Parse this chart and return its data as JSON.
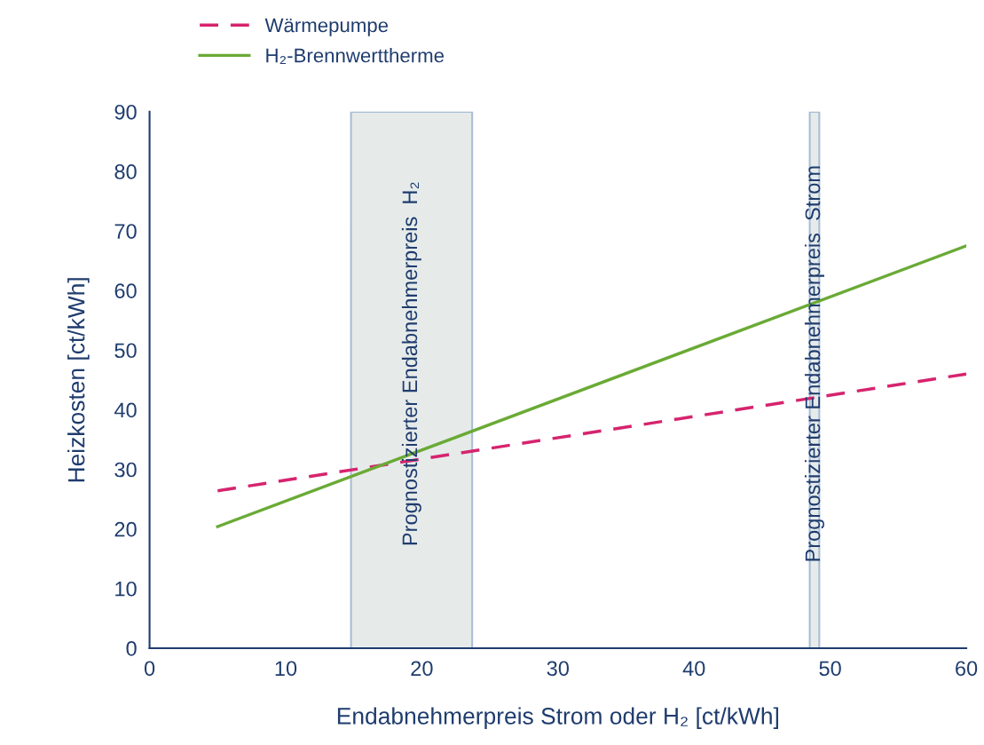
{
  "chart_data": {
    "type": "line",
    "xlabel": "Endabnehmerpreis Strom oder H₂ [ct/kWh]",
    "ylabel": "Heizkosten [ct/kWh]",
    "x": [
      5,
      60
    ],
    "series": [
      {
        "name": "Wärmepumpe",
        "color": "#d6246e",
        "values": [
          26.4,
          46.0
        ],
        "line_style": "dashed"
      },
      {
        "name": "H₂-Brennwerttherme",
        "color": "#6aaa35",
        "values": [
          20.4,
          67.5
        ],
        "line_style": "solid"
      }
    ],
    "bands": [
      {
        "axis": "x",
        "from": 14.8,
        "to": 23.7,
        "label": "Prognostizierter Endabnehmerpreis  H₂",
        "color": "#e6ebea"
      },
      {
        "axis": "x",
        "from": 48.5,
        "to": 49.2,
        "label": "Prognostizierter Endabnehmerpreis  Strom",
        "color": "#e6ebea"
      }
    ],
    "xlim": [
      0,
      60
    ],
    "xticks": [
      0,
      10,
      20,
      30,
      40,
      50,
      60
    ],
    "ylim": [
      0,
      90
    ],
    "yticks": [
      0,
      10,
      20,
      30,
      40,
      50,
      60,
      70,
      80,
      90
    ],
    "grid": false,
    "legend": "top left",
    "marker": "none"
  }
}
